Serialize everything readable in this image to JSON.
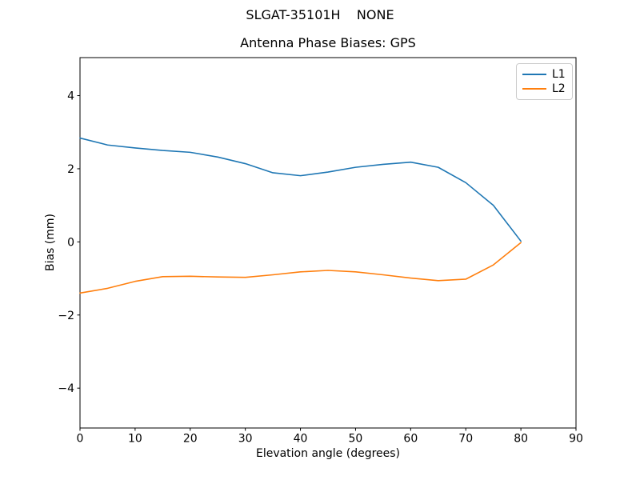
{
  "figure": {
    "suptitle": "SLGAT-35101H    NONE"
  },
  "chart_data": {
    "type": "line",
    "title": "Antenna Phase Biases: GPS",
    "xlabel": "Elevation angle (degrees)",
    "ylabel": "Bias (mm)",
    "xlim": [
      0,
      90
    ],
    "ylim": [
      -5.09,
      5.04
    ],
    "xticks": [
      0,
      10,
      20,
      30,
      40,
      50,
      60,
      70,
      80,
      90
    ],
    "yticks": [
      -4,
      -2,
      0,
      2,
      4
    ],
    "grid": false,
    "legend_position": "upper right",
    "x": [
      0,
      5,
      10,
      15,
      20,
      25,
      30,
      35,
      40,
      45,
      50,
      55,
      60,
      65,
      70,
      75,
      80
    ],
    "series": [
      {
        "name": "L1",
        "color": "#1f77b4",
        "values": [
          2.84,
          2.65,
          2.57,
          2.5,
          2.45,
          2.32,
          2.14,
          1.89,
          1.81,
          1.91,
          2.04,
          2.12,
          2.18,
          2.04,
          1.62,
          1.0,
          0.02
        ]
      },
      {
        "name": "L2",
        "color": "#ff7f0e",
        "values": [
          -1.4,
          -1.27,
          -1.08,
          -0.95,
          -0.94,
          -0.96,
          -0.97,
          -0.9,
          -0.82,
          -0.78,
          -0.82,
          -0.9,
          -0.99,
          -1.06,
          -1.02,
          -0.63,
          -0.02
        ]
      }
    ],
    "axis_color": "#000000",
    "legend_border_color": "#cccccc"
  }
}
